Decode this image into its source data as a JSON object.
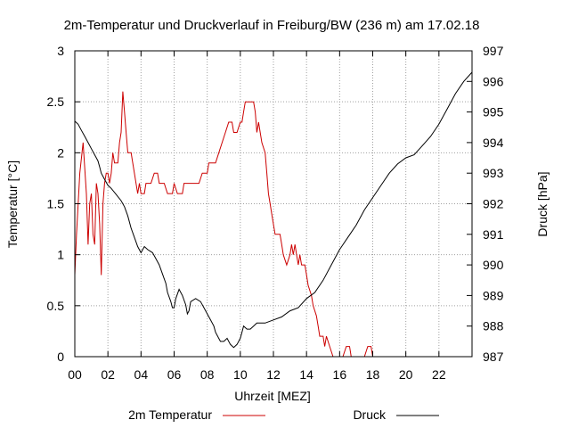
{
  "chart_data": {
    "type": "line",
    "title": "2m-Temperatur und Druckverlauf in Freiburg/BW (236 m) am 17.02.18",
    "xlabel": "Uhrzeit [MEZ]",
    "ylabel": "Temperatur [°C]",
    "y2label": "Druck [hPa]",
    "xlim": [
      0,
      24
    ],
    "ylim": [
      0,
      3
    ],
    "y2lim": [
      987,
      997
    ],
    "grid": true,
    "legend_position": "bottom",
    "x_ticks": [
      {
        "value": 0,
        "label": "00"
      },
      {
        "value": 2,
        "label": "02"
      },
      {
        "value": 4,
        "label": "04"
      },
      {
        "value": 6,
        "label": "06"
      },
      {
        "value": 8,
        "label": "08"
      },
      {
        "value": 10,
        "label": "10"
      },
      {
        "value": 12,
        "label": "12"
      },
      {
        "value": 14,
        "label": "14"
      },
      {
        "value": 16,
        "label": "16"
      },
      {
        "value": 18,
        "label": "18"
      },
      {
        "value": 20,
        "label": "20"
      },
      {
        "value": 22,
        "label": "22"
      }
    ],
    "y_ticks": [
      {
        "value": 0,
        "label": "0"
      },
      {
        "value": 0.5,
        "label": "0.5"
      },
      {
        "value": 1,
        "label": "1"
      },
      {
        "value": 1.5,
        "label": "1.5"
      },
      {
        "value": 2,
        "label": "2"
      },
      {
        "value": 2.5,
        "label": "2.5"
      },
      {
        "value": 3,
        "label": "3"
      }
    ],
    "y2_ticks": [
      {
        "value": 987,
        "label": "987"
      },
      {
        "value": 988,
        "label": "988"
      },
      {
        "value": 989,
        "label": "989"
      },
      {
        "value": 990,
        "label": "990"
      },
      {
        "value": 991,
        "label": "991"
      },
      {
        "value": 992,
        "label": "992"
      },
      {
        "value": 993,
        "label": "993"
      },
      {
        "value": 994,
        "label": "994"
      },
      {
        "value": 995,
        "label": "995"
      },
      {
        "value": 996,
        "label": "996"
      },
      {
        "value": 997,
        "label": "997"
      }
    ],
    "series": [
      {
        "name": "2m Temperatur",
        "axis": "left",
        "color": "#cc0000",
        "points": [
          [
            0,
            0.8
          ],
          [
            0.1,
            1.2
          ],
          [
            0.3,
            1.8
          ],
          [
            0.5,
            2.1
          ],
          [
            0.7,
            1.6
          ],
          [
            0.8,
            1.1
          ],
          [
            0.9,
            1.5
          ],
          [
            1.0,
            1.6
          ],
          [
            1.1,
            1.2
          ],
          [
            1.2,
            1.1
          ],
          [
            1.3,
            1.7
          ],
          [
            1.4,
            1.6
          ],
          [
            1.5,
            1.3
          ],
          [
            1.6,
            0.8
          ],
          [
            1.7,
            1.5
          ],
          [
            1.8,
            1.7
          ],
          [
            1.9,
            1.8
          ],
          [
            2.0,
            1.8
          ],
          [
            2.1,
            1.7
          ],
          [
            2.2,
            1.8
          ],
          [
            2.3,
            2.0
          ],
          [
            2.4,
            1.9
          ],
          [
            2.5,
            1.9
          ],
          [
            2.6,
            1.9
          ],
          [
            2.7,
            2.1
          ],
          [
            2.8,
            2.2
          ],
          [
            2.9,
            2.6
          ],
          [
            3.0,
            2.4
          ],
          [
            3.1,
            2.2
          ],
          [
            3.2,
            2.0
          ],
          [
            3.4,
            2.0
          ],
          [
            3.6,
            1.8
          ],
          [
            3.8,
            1.6
          ],
          [
            3.9,
            1.7
          ],
          [
            4.0,
            1.6
          ],
          [
            4.2,
            1.6
          ],
          [
            4.3,
            1.7
          ],
          [
            4.6,
            1.7
          ],
          [
            4.8,
            1.8
          ],
          [
            5.0,
            1.8
          ],
          [
            5.1,
            1.7
          ],
          [
            5.4,
            1.7
          ],
          [
            5.6,
            1.6
          ],
          [
            5.9,
            1.6
          ],
          [
            6.0,
            1.7
          ],
          [
            6.2,
            1.6
          ],
          [
            6.5,
            1.6
          ],
          [
            6.6,
            1.7
          ],
          [
            7.2,
            1.7
          ],
          [
            7.5,
            1.7
          ],
          [
            7.7,
            1.8
          ],
          [
            8.0,
            1.8
          ],
          [
            8.1,
            1.9
          ],
          [
            8.5,
            1.9
          ],
          [
            8.7,
            2.0
          ],
          [
            8.9,
            2.1
          ],
          [
            9.1,
            2.2
          ],
          [
            9.3,
            2.3
          ],
          [
            9.5,
            2.3
          ],
          [
            9.6,
            2.2
          ],
          [
            9.8,
            2.2
          ],
          [
            10.0,
            2.3
          ],
          [
            10.1,
            2.3
          ],
          [
            10.2,
            2.4
          ],
          [
            10.3,
            2.5
          ],
          [
            10.8,
            2.5
          ],
          [
            10.9,
            2.4
          ],
          [
            11.0,
            2.2
          ],
          [
            11.1,
            2.3
          ],
          [
            11.3,
            2.1
          ],
          [
            11.5,
            2.0
          ],
          [
            11.6,
            1.8
          ],
          [
            11.7,
            1.6
          ],
          [
            11.8,
            1.5
          ],
          [
            11.9,
            1.4
          ],
          [
            12.0,
            1.3
          ],
          [
            12.1,
            1.2
          ],
          [
            12.4,
            1.2
          ],
          [
            12.5,
            1.1
          ],
          [
            12.6,
            1.0
          ],
          [
            12.8,
            0.9
          ],
          [
            13.0,
            1.0
          ],
          [
            13.1,
            1.1
          ],
          [
            13.2,
            1.0
          ],
          [
            13.3,
            1.1
          ],
          [
            13.4,
            1.0
          ],
          [
            13.5,
            0.9
          ],
          [
            13.6,
            1.0
          ],
          [
            13.7,
            0.9
          ],
          [
            13.9,
            0.9
          ],
          [
            14.0,
            0.8
          ],
          [
            14.1,
            0.7
          ],
          [
            14.3,
            0.6
          ],
          [
            14.4,
            0.5
          ],
          [
            14.6,
            0.4
          ],
          [
            14.7,
            0.3
          ],
          [
            14.8,
            0.2
          ],
          [
            15.0,
            0.2
          ],
          [
            15.1,
            0.1
          ],
          [
            15.2,
            0.2
          ],
          [
            15.4,
            0.1
          ],
          [
            15.6,
            0.0
          ],
          [
            16.0,
            0.0
          ],
          [
            16.2,
            0.0
          ],
          [
            16.4,
            0.1
          ],
          [
            16.6,
            0.1
          ],
          [
            16.7,
            0.0
          ],
          [
            17.5,
            0.0
          ],
          [
            17.7,
            0.1
          ],
          [
            17.9,
            0.1
          ],
          [
            18.0,
            0.0
          ],
          [
            20.5,
            0.0
          ],
          [
            20.7,
            0.0
          ],
          [
            20.8,
            -0.1
          ],
          [
            21.3,
            -0.1
          ],
          [
            21.4,
            0.0
          ],
          [
            24.0,
            0.0
          ]
        ]
      },
      {
        "name": "Druck",
        "axis": "right",
        "color": "#000000",
        "points": [
          [
            0,
            994.7
          ],
          [
            0.2,
            994.6
          ],
          [
            0.4,
            994.4
          ],
          [
            0.6,
            994.2
          ],
          [
            0.8,
            994.0
          ],
          [
            1.0,
            993.8
          ],
          [
            1.2,
            993.6
          ],
          [
            1.4,
            993.4
          ],
          [
            1.5,
            993.2
          ],
          [
            1.6,
            993.0
          ],
          [
            1.8,
            992.8
          ],
          [
            2.0,
            992.6
          ],
          [
            2.2,
            992.5
          ],
          [
            2.5,
            992.3
          ],
          [
            2.8,
            992.1
          ],
          [
            3.0,
            991.9
          ],
          [
            3.2,
            991.6
          ],
          [
            3.4,
            991.2
          ],
          [
            3.6,
            990.9
          ],
          [
            3.8,
            990.6
          ],
          [
            4.0,
            990.4
          ],
          [
            4.2,
            990.6
          ],
          [
            4.4,
            990.5
          ],
          [
            4.7,
            990.4
          ],
          [
            4.9,
            990.2
          ],
          [
            5.1,
            990.0
          ],
          [
            5.3,
            989.7
          ],
          [
            5.5,
            989.4
          ],
          [
            5.6,
            989.1
          ],
          [
            5.8,
            988.8
          ],
          [
            5.9,
            988.6
          ],
          [
            6.0,
            988.6
          ],
          [
            6.1,
            988.9
          ],
          [
            6.3,
            989.2
          ],
          [
            6.5,
            989.0
          ],
          [
            6.7,
            988.7
          ],
          [
            6.8,
            988.4
          ],
          [
            6.9,
            988.5
          ],
          [
            7.0,
            988.8
          ],
          [
            7.3,
            988.9
          ],
          [
            7.6,
            988.8
          ],
          [
            7.8,
            988.6
          ],
          [
            8.0,
            988.4
          ],
          [
            8.2,
            988.2
          ],
          [
            8.4,
            988.0
          ],
          [
            8.5,
            987.8
          ],
          [
            8.6,
            987.7
          ],
          [
            8.8,
            987.5
          ],
          [
            9.0,
            987.5
          ],
          [
            9.2,
            987.6
          ],
          [
            9.4,
            987.4
          ],
          [
            9.6,
            987.3
          ],
          [
            9.8,
            987.4
          ],
          [
            10.0,
            987.6
          ],
          [
            10.1,
            987.8
          ],
          [
            10.2,
            988.0
          ],
          [
            10.4,
            987.9
          ],
          [
            10.6,
            987.9
          ],
          [
            10.8,
            988.0
          ],
          [
            11.0,
            988.1
          ],
          [
            11.5,
            988.1
          ],
          [
            12.0,
            988.2
          ],
          [
            12.5,
            988.3
          ],
          [
            13.0,
            988.5
          ],
          [
            13.5,
            988.6
          ],
          [
            14.0,
            988.9
          ],
          [
            14.5,
            989.1
          ],
          [
            15.0,
            989.5
          ],
          [
            15.5,
            990.0
          ],
          [
            16.0,
            990.5
          ],
          [
            16.5,
            990.9
          ],
          [
            17.0,
            991.3
          ],
          [
            17.5,
            991.8
          ],
          [
            18.0,
            992.2
          ],
          [
            18.5,
            992.6
          ],
          [
            19.0,
            993.0
          ],
          [
            19.5,
            993.3
          ],
          [
            20.0,
            993.5
          ],
          [
            20.5,
            993.6
          ],
          [
            21.0,
            993.9
          ],
          [
            21.5,
            994.2
          ],
          [
            22.0,
            994.6
          ],
          [
            22.5,
            995.1
          ],
          [
            23.0,
            995.6
          ],
          [
            23.5,
            996.0
          ],
          [
            24.0,
            996.3
          ]
        ]
      }
    ]
  }
}
